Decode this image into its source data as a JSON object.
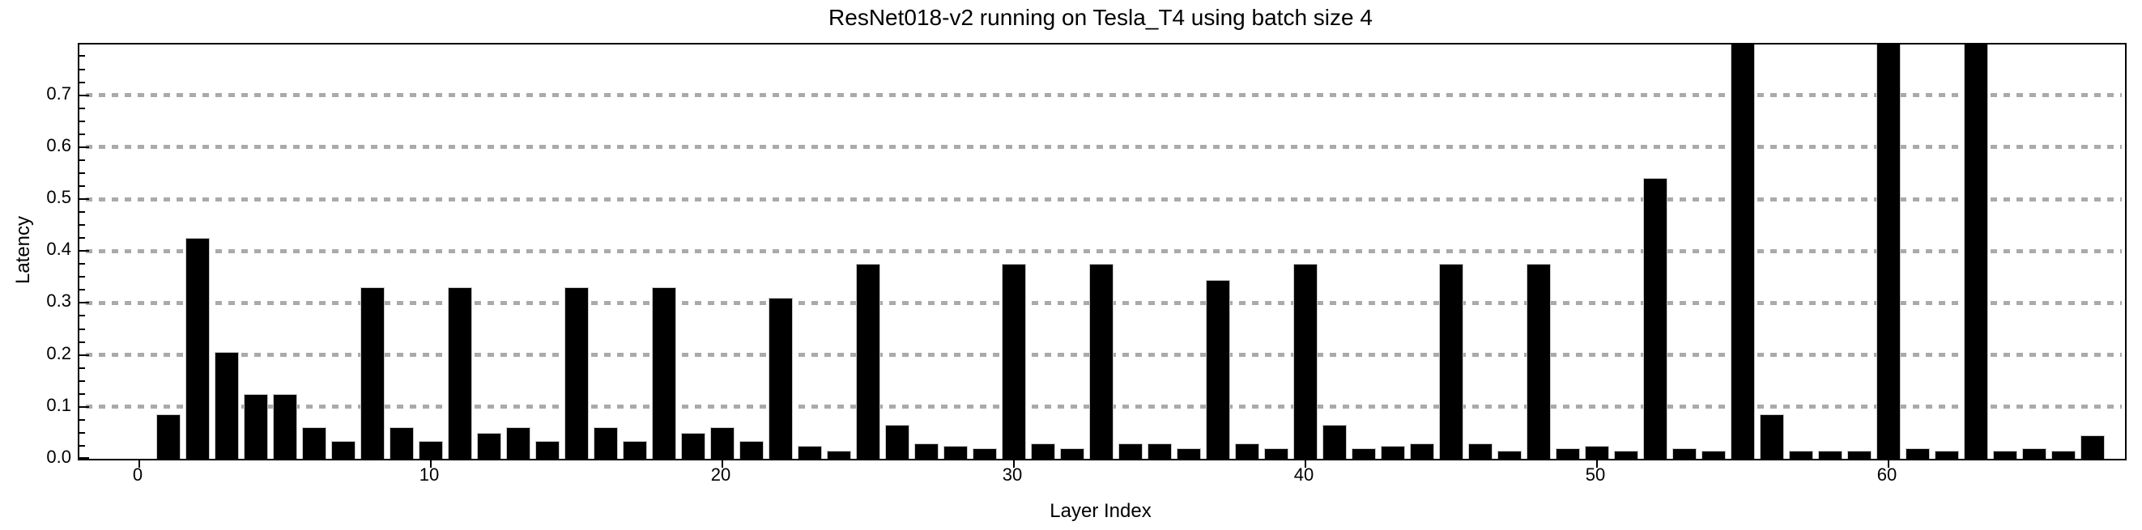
{
  "chart_data": {
    "type": "bar",
    "title": "ResNet018-v2 running on Tesla_T4 using batch size 4",
    "xlabel": "Layer Index",
    "ylabel": "Latency",
    "x": [
      1,
      2,
      3,
      4,
      5,
      6,
      7,
      8,
      9,
      10,
      11,
      12,
      13,
      14,
      15,
      16,
      17,
      18,
      19,
      20,
      21,
      22,
      23,
      24,
      25,
      26,
      27,
      28,
      29,
      30,
      31,
      32,
      33,
      34,
      35,
      36,
      37,
      38,
      39,
      40,
      41,
      42,
      43,
      44,
      45,
      46,
      47,
      48,
      49,
      50,
      51,
      52,
      53,
      54,
      55,
      56,
      57,
      58,
      59,
      60,
      61,
      62,
      63,
      64,
      65,
      66,
      67
    ],
    "values": [
      0.085,
      0.425,
      0.205,
      0.125,
      0.125,
      0.06,
      0.035,
      0.33,
      0.06,
      0.035,
      0.33,
      0.05,
      0.06,
      0.035,
      0.33,
      0.06,
      0.035,
      0.33,
      0.05,
      0.06,
      0.035,
      0.31,
      0.025,
      0.015,
      0.375,
      0.065,
      0.03,
      0.025,
      0.02,
      0.375,
      0.03,
      0.02,
      0.375,
      0.03,
      0.03,
      0.02,
      0.345,
      0.03,
      0.02,
      0.375,
      0.065,
      0.02,
      0.025,
      0.03,
      0.375,
      0.03,
      0.015,
      0.375,
      0.02,
      0.025,
      0.015,
      0.54,
      0.02,
      0.015,
      0.8,
      0.085,
      0.015,
      0.015,
      0.015,
      0.8,
      0.02,
      0.015,
      0.8,
      0.015,
      0.02,
      0.015,
      0.045
    ],
    "bars_clipped_at_top_x": [
      55,
      60,
      63
    ],
    "xticks": [
      0,
      10,
      20,
      30,
      40,
      50,
      60
    ],
    "xtick_labels": [
      "0",
      "10",
      "20",
      "30",
      "40",
      "50",
      "60"
    ],
    "yticks": [
      0.0,
      0.1,
      0.2,
      0.3,
      0.4,
      0.5,
      0.6,
      0.7
    ],
    "ytick_labels": [
      "0.0",
      "0.1",
      "0.2",
      "0.3",
      "0.4",
      "0.5",
      "0.6",
      "0.7"
    ],
    "y_minor_tick_step": 0.025,
    "ylim": [
      0,
      0.8
    ],
    "xlim": [
      -2.1,
      68.1
    ],
    "grid": "horizontal-dotted",
    "legend": "none",
    "colors": {
      "bar_fill": "#000000",
      "bar_edge": "#c8c8c8",
      "grid": "#aaaaaa",
      "frame": "#000000",
      "text": "#000000",
      "background": "#ffffff"
    }
  }
}
